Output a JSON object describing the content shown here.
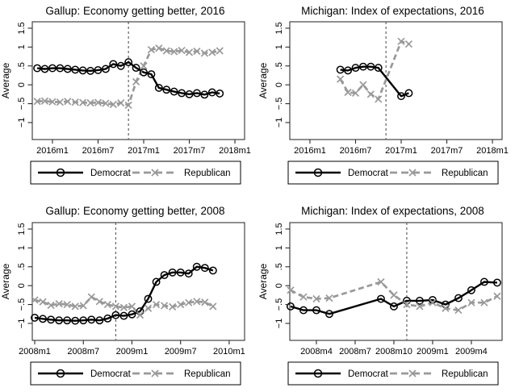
{
  "figure": {
    "background": "#ffffff",
    "democrat_color": "#000000",
    "republican_color": "#999999",
    "election_line_color": "#555555"
  },
  "chart_data": [
    {
      "type": "line",
      "title": "Gallup: Economy getting better, 2016",
      "ylabel": "Average",
      "x_domain": [
        -2.65,
        25.27
      ],
      "y_domain": [
        -1.45,
        1.67
      ],
      "election_t": 10,
      "xticks": [
        {
          "t": 0,
          "label": "2016m1"
        },
        {
          "t": 6,
          "label": "2016m7"
        },
        {
          "t": 12,
          "label": "2017m1"
        },
        {
          "t": 18,
          "label": "2017m7"
        },
        {
          "t": 24,
          "label": "2018m1"
        }
      ],
      "yticks": [
        {
          "v": 1.5,
          "label": "1.5"
        },
        {
          "v": 1,
          "label": "1"
        },
        {
          "v": 0.5,
          "label": ".5"
        },
        {
          "v": 0,
          "label": "0"
        },
        {
          "v": -0.5,
          "label": "−.5"
        },
        {
          "v": -1,
          "label": "−1"
        }
      ],
      "series": [
        {
          "name": "Democrat",
          "color": "#000000",
          "style": "solid",
          "marker": "circle",
          "points": [
            [
              -2,
              0.44
            ],
            [
              -1,
              0.42
            ],
            [
              0,
              0.44
            ],
            [
              1,
              0.44
            ],
            [
              2,
              0.42
            ],
            [
              3,
              0.4
            ],
            [
              4,
              0.38
            ],
            [
              5,
              0.37
            ],
            [
              6,
              0.39
            ],
            [
              7,
              0.42
            ],
            [
              8,
              0.55
            ],
            [
              9,
              0.5
            ],
            [
              10,
              0.6
            ],
            [
              11,
              0.45
            ],
            [
              12,
              0.33
            ],
            [
              13,
              0.28
            ],
            [
              14,
              -0.08
            ],
            [
              15,
              -0.13
            ],
            [
              16,
              -0.18
            ],
            [
              17,
              -0.22
            ],
            [
              18,
              -0.25
            ],
            [
              19,
              -0.22
            ],
            [
              20,
              -0.26
            ],
            [
              21,
              -0.2
            ],
            [
              22,
              -0.23
            ]
          ]
        },
        {
          "name": "Republican",
          "color": "#999999",
          "style": "dashed",
          "marker": "x",
          "points": [
            [
              -2,
              -0.44
            ],
            [
              -1,
              -0.43
            ],
            [
              0,
              -0.45
            ],
            [
              1,
              -0.46
            ],
            [
              2,
              -0.44
            ],
            [
              3,
              -0.46
            ],
            [
              4,
              -0.47
            ],
            [
              5,
              -0.48
            ],
            [
              6,
              -0.47
            ],
            [
              7,
              -0.49
            ],
            [
              8,
              -0.52
            ],
            [
              9,
              -0.48
            ],
            [
              10,
              -0.54
            ],
            [
              11,
              0.08
            ],
            [
              12,
              0.5
            ],
            [
              13,
              0.93
            ],
            [
              14,
              0.97
            ],
            [
              15,
              0.9
            ],
            [
              16,
              0.88
            ],
            [
              17,
              0.91
            ],
            [
              18,
              0.86
            ],
            [
              19,
              0.89
            ],
            [
              20,
              0.84
            ],
            [
              21,
              0.86
            ],
            [
              22,
              0.9
            ]
          ]
        }
      ]
    },
    {
      "type": "line",
      "title": "Michigan: Index of expectations, 2016",
      "ylabel": "Average",
      "x_domain": [
        -2.65,
        25.27
      ],
      "y_domain": [
        -1.45,
        1.67
      ],
      "election_t": 10,
      "xticks": [
        {
          "t": 0,
          "label": "2016m1"
        },
        {
          "t": 6,
          "label": "2016m7"
        },
        {
          "t": 12,
          "label": "2017m1"
        },
        {
          "t": 18,
          "label": "2017m7"
        },
        {
          "t": 24,
          "label": "2018m1"
        }
      ],
      "yticks": [
        {
          "v": 1.5,
          "label": "1.5"
        },
        {
          "v": 1,
          "label": "1"
        },
        {
          "v": 0.5,
          "label": ".5"
        },
        {
          "v": 0,
          "label": "0"
        },
        {
          "v": -0.5,
          "label": "−.5"
        },
        {
          "v": -1,
          "label": "−1"
        }
      ],
      "series": [
        {
          "name": "Democrat",
          "color": "#000000",
          "style": "solid",
          "marker": "circle",
          "points": [
            [
              4,
              0.4
            ],
            [
              5,
              0.38
            ],
            [
              6,
              0.45
            ],
            [
              7,
              0.48
            ],
            [
              8,
              0.48
            ],
            [
              9,
              0.45
            ],
            [
              12,
              -0.3
            ],
            [
              13,
              -0.22
            ]
          ]
        },
        {
          "name": "Republican",
          "color": "#999999",
          "style": "dashed",
          "marker": "x",
          "points": [
            [
              4,
              0.15
            ],
            [
              5,
              -0.2
            ],
            [
              6,
              -0.22
            ],
            [
              7,
              0.0
            ],
            [
              8,
              -0.25
            ],
            [
              9,
              -0.38
            ],
            [
              12,
              1.15
            ],
            [
              13,
              1.08
            ]
          ]
        }
      ]
    },
    {
      "type": "line",
      "title": "Gallup: Economy getting better, 2008",
      "ylabel": "Average",
      "x_domain": [
        -0.3,
        25.9
      ],
      "y_domain": [
        -1.45,
        1.67
      ],
      "election_t": 10,
      "xticks": [
        {
          "t": 0,
          "label": "2008m1"
        },
        {
          "t": 6,
          "label": "2008m7"
        },
        {
          "t": 12,
          "label": "2009m1"
        },
        {
          "t": 18,
          "label": "2009m7"
        },
        {
          "t": 24,
          "label": "2010m1"
        }
      ],
      "yticks": [
        {
          "v": 1.5,
          "label": "1.5"
        },
        {
          "v": 1,
          "label": "1"
        },
        {
          "v": 0.5,
          "label": ".5"
        },
        {
          "v": 0,
          "label": "0"
        },
        {
          "v": -0.5,
          "label": "−.5"
        },
        {
          "v": -1,
          "label": "−1"
        }
      ],
      "series": [
        {
          "name": "Democrat",
          "color": "#000000",
          "style": "solid",
          "marker": "circle",
          "points": [
            [
              0,
              -0.85
            ],
            [
              1,
              -0.88
            ],
            [
              2,
              -0.9
            ],
            [
              3,
              -0.92
            ],
            [
              4,
              -0.92
            ],
            [
              5,
              -0.93
            ],
            [
              6,
              -0.92
            ],
            [
              7,
              -0.9
            ],
            [
              8,
              -0.92
            ],
            [
              9,
              -0.87
            ],
            [
              10,
              -0.78
            ],
            [
              11,
              -0.8
            ],
            [
              12,
              -0.76
            ],
            [
              13,
              -0.68
            ],
            [
              14,
              -0.35
            ],
            [
              15,
              0.1
            ],
            [
              16,
              0.28
            ],
            [
              17,
              0.35
            ],
            [
              18,
              0.35
            ],
            [
              19,
              0.32
            ],
            [
              20,
              0.5
            ],
            [
              21,
              0.47
            ],
            [
              22,
              0.4
            ]
          ]
        },
        {
          "name": "Republican",
          "color": "#999999",
          "style": "dashed",
          "marker": "x",
          "points": [
            [
              0,
              -0.38
            ],
            [
              1,
              -0.43
            ],
            [
              2,
              -0.52
            ],
            [
              3,
              -0.48
            ],
            [
              4,
              -0.5
            ],
            [
              5,
              -0.55
            ],
            [
              6,
              -0.53
            ],
            [
              7,
              -0.3
            ],
            [
              8,
              -0.42
            ],
            [
              9,
              -0.5
            ],
            [
              10,
              -0.55
            ],
            [
              11,
              -0.58
            ],
            [
              12,
              -0.55
            ],
            [
              13,
              -0.78
            ],
            [
              14,
              -0.6
            ],
            [
              15,
              -0.5
            ],
            [
              16,
              -0.53
            ],
            [
              17,
              -0.56
            ],
            [
              18,
              -0.5
            ],
            [
              19,
              -0.45
            ],
            [
              20,
              -0.42
            ],
            [
              21,
              -0.44
            ],
            [
              22,
              -0.55
            ]
          ]
        }
      ]
    },
    {
      "type": "line",
      "title": "Michigan: Index of expectations, 2008",
      "ylabel": "Average",
      "x_domain": [
        -2.06,
        14.38
      ],
      "y_domain": [
        -1.45,
        1.67
      ],
      "election_t": 7,
      "xticks": [
        {
          "t": 0,
          "label": "2008m4"
        },
        {
          "t": 3,
          "label": "2008m7"
        },
        {
          "t": 6,
          "label": "2008m10"
        },
        {
          "t": 9,
          "label": "2009m1"
        },
        {
          "t": 12,
          "label": "2009m4"
        }
      ],
      "yticks": [
        {
          "v": 1.5,
          "label": "1.5"
        },
        {
          "v": 1,
          "label": "1"
        },
        {
          "v": 0.5,
          "label": ".5"
        },
        {
          "v": 0,
          "label": "0"
        },
        {
          "v": -0.5,
          "label": "−.5"
        },
        {
          "v": -1,
          "label": "−1"
        }
      ],
      "series": [
        {
          "name": "Democrat",
          "color": "#000000",
          "style": "solid",
          "marker": "circle",
          "points": [
            [
              -2,
              -0.55
            ],
            [
              -1,
              -0.65
            ],
            [
              0,
              -0.65
            ],
            [
              1,
              -0.75
            ],
            [
              5,
              -0.35
            ],
            [
              6,
              -0.55
            ],
            [
              7,
              -0.4
            ],
            [
              8,
              -0.4
            ],
            [
              9,
              -0.38
            ],
            [
              10,
              -0.5
            ],
            [
              11,
              -0.33
            ],
            [
              12,
              -0.12
            ],
            [
              13,
              0.1
            ],
            [
              14,
              0.08
            ]
          ]
        },
        {
          "name": "Republican",
          "color": "#999999",
          "style": "dashed",
          "marker": "x",
          "points": [
            [
              -2,
              -0.12
            ],
            [
              -1,
              -0.3
            ],
            [
              0,
              -0.35
            ],
            [
              1,
              -0.33
            ],
            [
              5,
              0.1
            ],
            [
              6,
              -0.25
            ],
            [
              7,
              -0.5
            ],
            [
              8,
              -0.55
            ],
            [
              9,
              -0.45
            ],
            [
              10,
              -0.6
            ],
            [
              11,
              -0.65
            ],
            [
              12,
              -0.45
            ],
            [
              13,
              -0.45
            ],
            [
              14,
              -0.28
            ]
          ]
        }
      ]
    }
  ]
}
